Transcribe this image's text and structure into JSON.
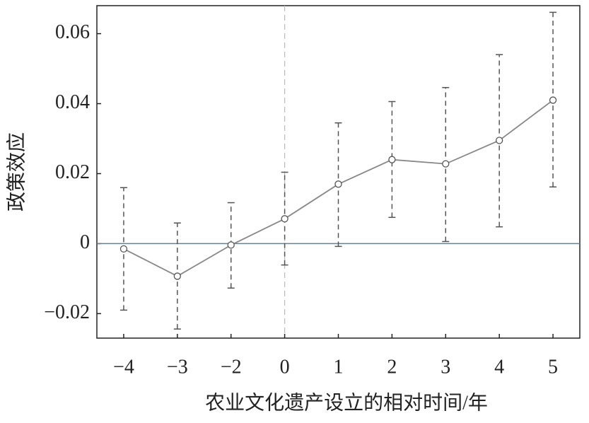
{
  "chart_data": {
    "type": "errorbar",
    "xlabel": "农业文化遗产设立的相对时间/年",
    "ylabel": "政策效应",
    "categories": [
      "−4",
      "−3",
      "−2",
      "0",
      "1",
      "2",
      "3",
      "4",
      "5"
    ],
    "series": [
      {
        "color": "#888888",
        "values": [
          -0.0015,
          -0.0093,
          -0.0004,
          0.0071,
          0.017,
          0.024,
          0.0228,
          0.0295,
          0.041
        ],
        "ci_low": [
          -0.019,
          -0.0244,
          -0.0127,
          -0.0061,
          -0.0008,
          0.0075,
          0.0006,
          0.0048,
          0.0162
        ],
        "ci_high": [
          0.016,
          0.0059,
          0.0117,
          0.0204,
          0.0345,
          0.0406,
          0.0446,
          0.054,
          0.0661
        ]
      }
    ],
    "ylim": [
      -0.027,
      0.068
    ],
    "yticks": [
      0.06,
      0.04,
      0.02,
      0,
      {
        "value": -0.02,
        "label": "−0.02"
      }
    ],
    "hline": 0,
    "vline_category": "0"
  }
}
